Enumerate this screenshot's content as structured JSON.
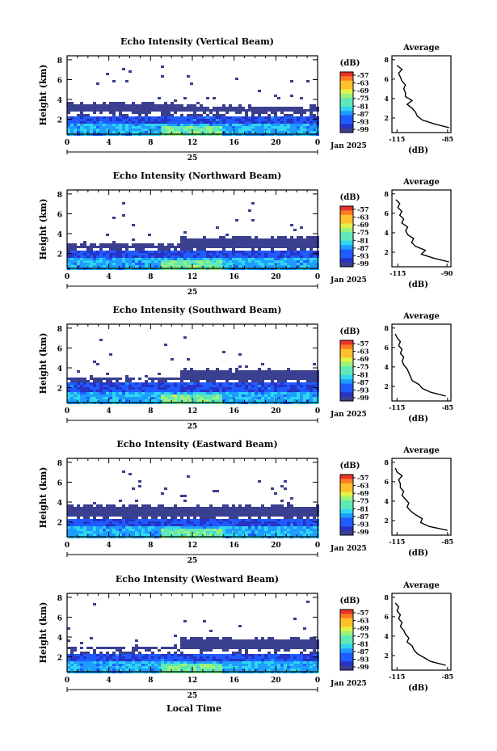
{
  "figure": {
    "xlabel": "Local Time",
    "date_label": "Jan 2025",
    "day_label": "25",
    "height_label": "Height (km)",
    "cb_unit": "(dB)",
    "avg_title": "Average",
    "avg_xlabel": "(dB)"
  },
  "colors": {
    "scale": [
      "#3a3f8f",
      "#2733c4",
      "#1f5bff",
      "#1e9cff",
      "#2fd6f0",
      "#5fe8b8",
      "#9cf27a",
      "#e2f24a",
      "#ffc02a",
      "#ff7a24",
      "#e8342a"
    ],
    "frame": "#000000"
  },
  "chart_data": [
    {
      "type": "heatmap",
      "title": "Echo Intensity (Vertical Beam)",
      "x_ticks": [
        "0",
        "4",
        "8",
        "12",
        "16",
        "20",
        "0"
      ],
      "y_ticks": [
        "2",
        "4",
        "6",
        "8"
      ],
      "xlim": [
        0,
        24
      ],
      "ylim": [
        0.5,
        8.4
      ],
      "colorbar": {
        "labels": [
          "-57",
          "-63",
          "-69",
          "-75",
          "-81",
          "-87",
          "-93",
          "-99"
        ],
        "range": [
          -99,
          -57
        ]
      },
      "avg_profile": {
        "xticks": [
          "-115",
          "-85"
        ],
        "xlim": [
          -118,
          -83
        ],
        "yticks": [
          "2",
          "4",
          "6",
          "8"
        ],
        "height": [
          1.0,
          1.4,
          1.8,
          2.2,
          2.6,
          3.0,
          3.4,
          3.8,
          4.2,
          4.6,
          5.0,
          5.4,
          5.8,
          6.2,
          6.6,
          7.0,
          7.4
        ],
        "db": [
          -84,
          -93,
          -100,
          -103,
          -104,
          -106,
          -109,
          -106,
          -110,
          -110,
          -111,
          -110,
          -112,
          -113,
          -114,
          -112,
          -115
        ]
      }
    },
    {
      "type": "heatmap",
      "title": "Echo Intensity (Northward Beam)",
      "x_ticks": [
        "0",
        "4",
        "8",
        "12",
        "16",
        "20",
        "0"
      ],
      "y_ticks": [
        "2",
        "4",
        "6",
        "8"
      ],
      "xlim": [
        0,
        24
      ],
      "ylim": [
        0.5,
        8.4
      ],
      "colorbar": {
        "labels": [
          "-57",
          "-63",
          "-69",
          "-75",
          "-81",
          "-87",
          "-93",
          "-99"
        ],
        "range": [
          -99,
          -57
        ]
      },
      "avg_profile": {
        "xticks": [
          "-115",
          "-90"
        ],
        "xlim": [
          -118,
          -88
        ],
        "yticks": [
          "2",
          "4",
          "6",
          "8"
        ],
        "height": [
          1.0,
          1.4,
          1.8,
          2.2,
          2.6,
          3.0,
          3.4,
          3.8,
          4.2,
          4.6,
          5.0,
          5.4,
          5.8,
          6.2,
          6.6,
          7.0,
          7.4
        ],
        "db": [
          -89,
          -97,
          -103,
          -101,
          -106,
          -108,
          -107,
          -110,
          -111,
          -110,
          -113,
          -112,
          -114,
          -113,
          -115,
          -114,
          -116
        ]
      }
    },
    {
      "type": "heatmap",
      "title": "Echo Intensity (Southward Beam)",
      "x_ticks": [
        "0",
        "4",
        "8",
        "12",
        "16",
        "20",
        "0"
      ],
      "y_ticks": [
        "2",
        "4",
        "6",
        "8"
      ],
      "xlim": [
        0,
        24
      ],
      "ylim": [
        0.5,
        8.4
      ],
      "colorbar": {
        "labels": [
          "-57",
          "-63",
          "-69",
          "-75",
          "-81",
          "-87",
          "-93",
          "-99"
        ],
        "range": [
          -99,
          -57
        ]
      },
      "avg_profile": {
        "xticks": [
          "-115",
          "-85"
        ],
        "xlim": [
          -118,
          -83
        ],
        "yticks": [
          "2",
          "4",
          "6",
          "8"
        ],
        "height": [
          1.0,
          1.4,
          1.8,
          2.2,
          2.6,
          3.0,
          3.4,
          3.8,
          4.2,
          4.6,
          5.0,
          5.4,
          5.8,
          6.2,
          6.6,
          7.0,
          7.4
        ],
        "db": [
          -86,
          -95,
          -100,
          -102,
          -106,
          -107,
          -108,
          -109,
          -111,
          -112,
          -111,
          -113,
          -112,
          -114,
          -113,
          -115,
          -116
        ]
      }
    },
    {
      "type": "heatmap",
      "title": "Echo Intensity (Eastward Beam)",
      "x_ticks": [
        "0",
        "4",
        "8",
        "12",
        "16",
        "20",
        "0"
      ],
      "y_ticks": [
        "2",
        "4",
        "6",
        "8"
      ],
      "xlim": [
        0,
        24
      ],
      "ylim": [
        0.5,
        8.4
      ],
      "colorbar": {
        "labels": [
          "-57",
          "-63",
          "-69",
          "-75",
          "-81",
          "-87",
          "-93",
          "-99"
        ],
        "range": [
          -99,
          -57
        ]
      },
      "avg_profile": {
        "xticks": [
          "-115",
          "-85"
        ],
        "xlim": [
          -118,
          -83
        ],
        "yticks": [
          "2",
          "4",
          "6",
          "8"
        ],
        "height": [
          1.0,
          1.4,
          1.8,
          2.2,
          2.6,
          3.0,
          3.4,
          3.8,
          4.2,
          4.6,
          5.0,
          5.4,
          5.8,
          6.2,
          6.6,
          7.0,
          7.4
        ],
        "db": [
          -85,
          -96,
          -101,
          -100,
          -104,
          -107,
          -109,
          -108,
          -110,
          -112,
          -111,
          -113,
          -113,
          -114,
          -112,
          -115,
          -116
        ]
      }
    },
    {
      "type": "heatmap",
      "title": "Echo Intensity (Westward Beam)",
      "x_ticks": [
        "0",
        "4",
        "8",
        "12",
        "16",
        "20",
        "0"
      ],
      "y_ticks": [
        "2",
        "4",
        "6",
        "8"
      ],
      "xlim": [
        0,
        24
      ],
      "ylim": [
        0.5,
        8.4
      ],
      "colorbar": {
        "labels": [
          "-57",
          "-63",
          "-69",
          "-75",
          "-81",
          "-87",
          "-93",
          "-99"
        ],
        "range": [
          -99,
          -57
        ]
      },
      "avg_profile": {
        "xticks": [
          "-115",
          "-85"
        ],
        "xlim": [
          -118,
          -83
        ],
        "yticks": [
          "2",
          "4",
          "6",
          "8"
        ],
        "height": [
          1.0,
          1.4,
          1.8,
          2.2,
          2.6,
          3.0,
          3.4,
          3.8,
          4.2,
          4.6,
          5.0,
          5.4,
          5.8,
          6.2,
          6.6,
          7.0,
          7.4
        ],
        "db": [
          -86,
          -95,
          -99,
          -103,
          -105,
          -106,
          -109,
          -108,
          -110,
          -111,
          -113,
          -112,
          -114,
          -113,
          -115,
          -114,
          -116
        ]
      }
    }
  ]
}
